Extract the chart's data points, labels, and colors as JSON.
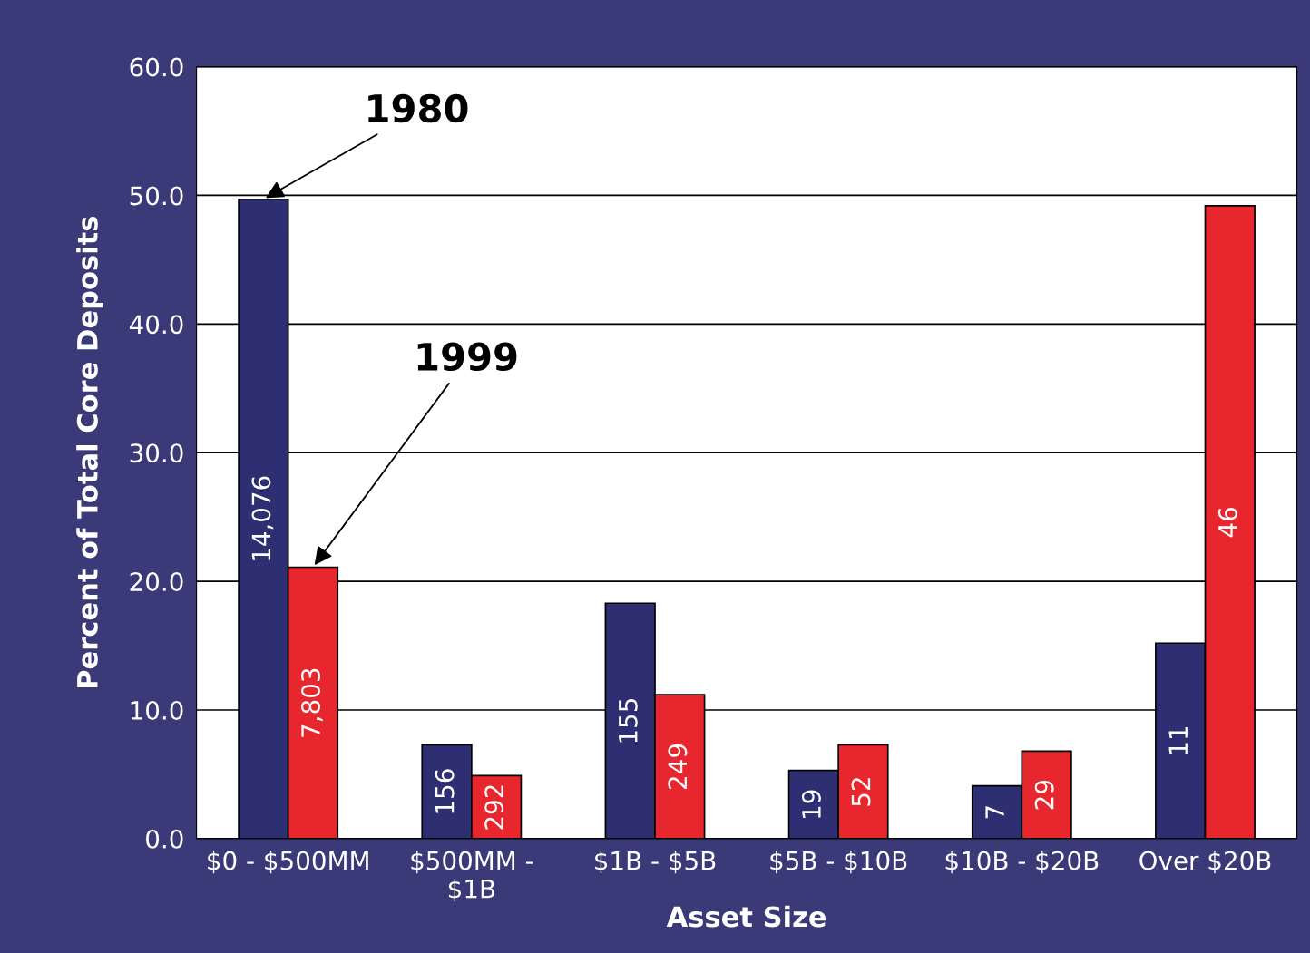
{
  "chart_data": {
    "type": "bar",
    "xlabel": "Asset Size",
    "ylabel": "Percent of Total Core Deposits",
    "categories": [
      "$0 - $500MM",
      "$500MM -\n$1B",
      "$1B - $5B",
      "$5B - $10B",
      "$10B - $20B",
      "Over $20B"
    ],
    "series": [
      {
        "name": "1980",
        "color": "#2e2f72",
        "values": [
          49.7,
          7.3,
          18.3,
          5.3,
          4.1,
          15.2
        ]
      },
      {
        "name": "1999",
        "color": "#e8262e",
        "values": [
          21.1,
          4.9,
          11.2,
          7.3,
          6.8,
          49.2
        ]
      }
    ],
    "annotations": [
      "14,076",
      "156",
      "155",
      "19",
      "7",
      "11",
      "7,803",
      "292",
      "249",
      "52",
      "29",
      "46"
    ],
    "ylim": [
      0,
      60
    ],
    "yticks": [
      {
        "value": 0,
        "label": "0.0"
      },
      {
        "value": 10,
        "label": "10.0"
      },
      {
        "value": 20,
        "label": "20.0"
      },
      {
        "value": 30,
        "label": "30.0"
      },
      {
        "value": 40,
        "label": "40.0"
      },
      {
        "value": 50,
        "label": "50.0"
      },
      {
        "value": 60,
        "label": "60.0"
      }
    ],
    "grid": "y",
    "legend": false
  }
}
